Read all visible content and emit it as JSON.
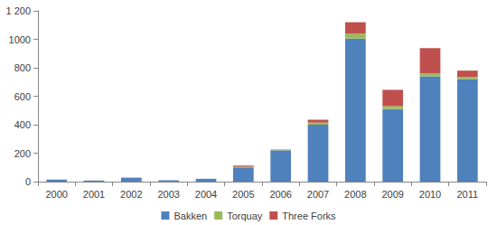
{
  "chart_data": {
    "type": "bar",
    "stacked": true,
    "categories": [
      "2000",
      "2001",
      "2002",
      "2003",
      "2004",
      "2005",
      "2006",
      "2007",
      "2008",
      "2009",
      "2010",
      "2011"
    ],
    "series": [
      {
        "name": "Bakken",
        "color": "#4f81bd",
        "values": [
          15,
          8,
          28,
          10,
          20,
          100,
          220,
          400,
          1005,
          510,
          740,
          720
        ]
      },
      {
        "name": "Torquay",
        "color": "#9bbb59",
        "values": [
          0,
          0,
          0,
          0,
          0,
          5,
          2,
          15,
          35,
          20,
          20,
          15
        ]
      },
      {
        "name": "Three Forks",
        "color": "#c0504d",
        "values": [
          0,
          0,
          0,
          0,
          0,
          8,
          3,
          20,
          80,
          115,
          178,
          45
        ]
      }
    ],
    "ylim": [
      0,
      1200
    ],
    "yticks": [
      0,
      200,
      400,
      600,
      800,
      1000,
      {
        "value": 1200,
        "label": "1 200"
      }
    ],
    "grid": false,
    "legend": "bottom"
  }
}
